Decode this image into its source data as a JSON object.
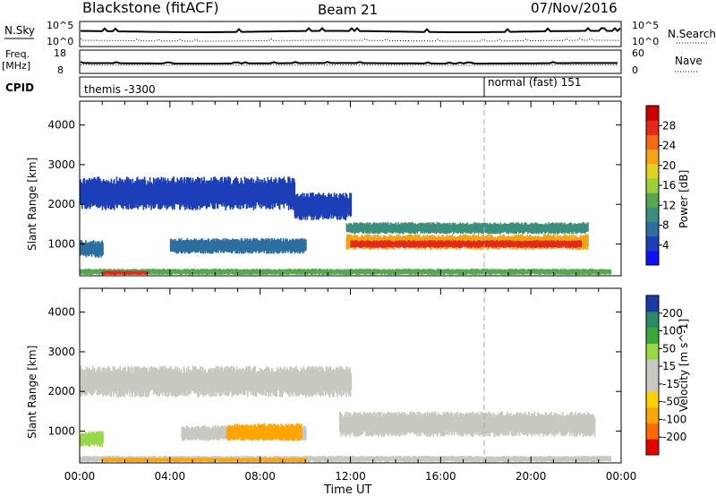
{
  "header": {
    "station": "Blackstone (fitACF)",
    "beam": "Beam 21",
    "date": "07/Nov/2016"
  },
  "top_panels": {
    "nsky_label": "N.Sky",
    "nsky_ticks": [
      "10^5",
      "10^0"
    ],
    "nsearch_label": "N.Search",
    "nsearch_ticks": [
      "10^5",
      "10^0"
    ],
    "freq_label": "Freq.",
    "freq_unit": "[MHz]",
    "freq_ticks": [
      "18",
      "8"
    ],
    "nave_label": "Nave",
    "nave_ticks": [
      "60",
      "0"
    ],
    "cpid_label": "CPID",
    "cpid_modes": [
      "themis -3300",
      "normal (fast) 151"
    ]
  },
  "time_axis": {
    "label": "Time UT",
    "ticks": [
      "00:00",
      "04:00",
      "08:00",
      "12:00",
      "16:00",
      "20:00",
      "00:00"
    ]
  },
  "chart_data": [
    {
      "type": "heatmap",
      "panel": "power",
      "ylabel": "Slant Range [km]",
      "yticks": [
        1000,
        2000,
        3000,
        4000
      ],
      "ylim": [
        200,
        4600
      ],
      "xlim_hours": [
        0,
        24
      ],
      "colorbar": {
        "label": "Power [dB]",
        "ticks": [
          "28",
          "24",
          "20",
          "16",
          "12",
          "8",
          "4"
        ],
        "colors": [
          "#1010ff",
          "#1c3fb8",
          "#2c6ea0",
          "#3a8f7c",
          "#55a850",
          "#9ccf3a",
          "#e0d21e",
          "#f2a418",
          "#f26a12",
          "#e6281a",
          "#cc0000"
        ]
      },
      "echo_bands": [
        {
          "start_h": 0.0,
          "end_h": 9.5,
          "range_lo_km": 1850,
          "range_hi_km": 2700,
          "color": "#1c3fb8"
        },
        {
          "start_h": 9.5,
          "end_h": 12.0,
          "range_lo_km": 1600,
          "range_hi_km": 2300,
          "color": "#1c3fb8"
        },
        {
          "start_h": 4.0,
          "end_h": 10.0,
          "range_lo_km": 750,
          "range_hi_km": 1150,
          "color": "#2c6ea0"
        },
        {
          "start_h": 0.0,
          "end_h": 1.0,
          "range_lo_km": 650,
          "range_hi_km": 1100,
          "color": "#2c6ea0"
        },
        {
          "start_h": 11.8,
          "end_h": 22.5,
          "range_lo_km": 1250,
          "range_hi_km": 1550,
          "color": "#3a8f7c"
        },
        {
          "start_h": 11.8,
          "end_h": 22.5,
          "range_lo_km": 850,
          "range_hi_km": 1250,
          "color": "#f2a418"
        },
        {
          "start_h": 12.0,
          "end_h": 22.2,
          "range_lo_km": 900,
          "range_hi_km": 1100,
          "color": "#e6281a"
        },
        {
          "start_h": 0.0,
          "end_h": 23.5,
          "range_lo_km": 220,
          "range_hi_km": 380,
          "color": "#55a850"
        },
        {
          "start_h": 1.0,
          "end_h": 3.0,
          "range_lo_km": 220,
          "range_hi_km": 330,
          "color": "#e6281a"
        }
      ]
    },
    {
      "type": "heatmap",
      "panel": "velocity",
      "ylabel": "Slant Range [km]",
      "yticks": [
        1000,
        2000,
        3000,
        4000
      ],
      "ylim": [
        200,
        4600
      ],
      "xlim_hours": [
        0,
        24
      ],
      "colorbar": {
        "label": "Velocity [m s^-1]",
        "ticks": [
          "200",
          "100",
          "50",
          "15",
          "-15",
          "-50",
          "-100",
          "-200"
        ],
        "colors": [
          "#e60000",
          "#ff6a00",
          "#ffa500",
          "#ffd000",
          "#c8c8c0",
          "#c8c8c0",
          "#9ad84a",
          "#3aa83a",
          "#2a8a6a",
          "#1a3aa8"
        ]
      },
      "echo_bands": [
        {
          "start_h": 0.0,
          "end_h": 12.0,
          "range_lo_km": 1850,
          "range_hi_km": 2650,
          "color": "#c8c8c0"
        },
        {
          "start_h": 11.5,
          "end_h": 22.8,
          "range_lo_km": 850,
          "range_hi_km": 1500,
          "color": "#c8c8c0"
        },
        {
          "start_h": 4.5,
          "end_h": 10.0,
          "range_lo_km": 750,
          "range_hi_km": 1150,
          "color": "#c8c8c0"
        },
        {
          "start_h": 6.5,
          "end_h": 9.8,
          "range_lo_km": 750,
          "range_hi_km": 1200,
          "color": "#ffa500"
        },
        {
          "start_h": 0.0,
          "end_h": 1.0,
          "range_lo_km": 600,
          "range_hi_km": 1000,
          "color": "#9ad84a"
        },
        {
          "start_h": 0.0,
          "end_h": 23.5,
          "range_lo_km": 220,
          "range_hi_km": 380,
          "color": "#c8c8c0"
        },
        {
          "start_h": 1.0,
          "end_h": 10.0,
          "range_lo_km": 220,
          "range_hi_km": 330,
          "color": "#ffa500"
        }
      ]
    }
  ]
}
